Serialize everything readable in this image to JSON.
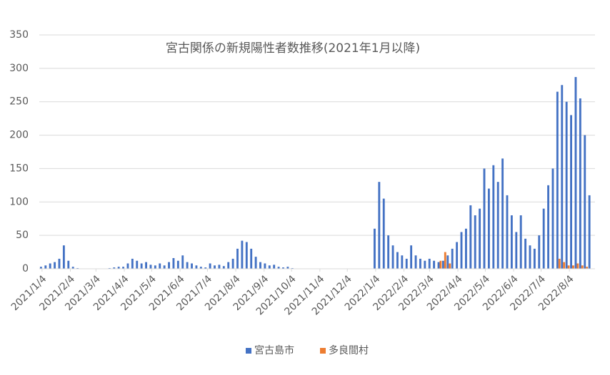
{
  "chart_data": {
    "type": "bar",
    "title": "宮古関係の新規陽性者数推移(2021年1月以降)",
    "x": [
      "2021/1/4",
      "2021/1/9",
      "2021/1/14",
      "2021/1/19",
      "2021/1/24",
      "2021/1/29",
      "2021/2/3",
      "2021/2/8",
      "2021/2/13",
      "2021/2/18",
      "2021/2/23",
      "2021/2/28",
      "2021/3/5",
      "2021/3/10",
      "2021/3/15",
      "2021/3/20",
      "2021/3/25",
      "2021/3/30",
      "2021/4/4",
      "2021/4/9",
      "2021/4/14",
      "2021/4/19",
      "2021/4/24",
      "2021/4/29",
      "2021/5/4",
      "2021/5/9",
      "2021/5/14",
      "2021/5/19",
      "2021/5/24",
      "2021/5/29",
      "2021/6/3",
      "2021/6/8",
      "2021/6/13",
      "2021/6/18",
      "2021/6/23",
      "2021/6/28",
      "2021/7/3",
      "2021/7/8",
      "2021/7/13",
      "2021/7/18",
      "2021/7/23",
      "2021/7/28",
      "2021/8/2",
      "2021/8/7",
      "2021/8/12",
      "2021/8/17",
      "2021/8/22",
      "2021/8/27",
      "2021/9/1",
      "2021/9/6",
      "2021/9/11",
      "2021/9/16",
      "2021/9/21",
      "2021/9/26",
      "2021/10/1",
      "2021/10/6",
      "2021/10/11",
      "2021/10/16",
      "2021/10/21",
      "2021/10/26",
      "2021/10/31",
      "2021/11/5",
      "2021/11/10",
      "2021/11/15",
      "2021/11/20",
      "2021/11/25",
      "2021/11/30",
      "2021/12/5",
      "2021/12/10",
      "2021/12/15",
      "2021/12/20",
      "2021/12/25",
      "2021/12/30",
      "2022/1/4",
      "2022/1/9",
      "2022/1/14",
      "2022/1/19",
      "2022/1/24",
      "2022/1/29",
      "2022/2/3",
      "2022/2/8",
      "2022/2/13",
      "2022/2/18",
      "2022/2/23",
      "2022/2/28",
      "2022/3/5",
      "2022/3/10",
      "2022/3/15",
      "2022/3/20",
      "2022/3/25",
      "2022/3/30",
      "2022/4/4",
      "2022/4/9",
      "2022/4/14",
      "2022/4/19",
      "2022/4/24",
      "2022/4/29",
      "2022/5/4",
      "2022/5/9",
      "2022/5/14",
      "2022/5/19",
      "2022/5/24",
      "2022/5/29",
      "2022/6/3",
      "2022/6/8",
      "2022/6/13",
      "2022/6/18",
      "2022/6/23",
      "2022/6/28",
      "2022/7/3",
      "2022/7/8",
      "2022/7/13",
      "2022/7/18",
      "2022/7/23",
      "2022/7/28",
      "2022/8/2",
      "2022/8/7",
      "2022/8/12",
      "2022/8/17",
      "2022/8/22",
      "2022/8/27"
    ],
    "series": [
      {
        "name": "宮古島市",
        "color": "#4472c4",
        "values": [
          3,
          5,
          8,
          10,
          15,
          35,
          12,
          3,
          1,
          0,
          0,
          0,
          0,
          0,
          0,
          1,
          2,
          3,
          3,
          8,
          15,
          12,
          8,
          10,
          6,
          5,
          8,
          5,
          10,
          16,
          12,
          20,
          10,
          8,
          5,
          3,
          2,
          8,
          5,
          6,
          4,
          10,
          15,
          30,
          42,
          40,
          30,
          18,
          10,
          8,
          5,
          6,
          3,
          2,
          3,
          1,
          0,
          0,
          0,
          0,
          0,
          0,
          0,
          0,
          0,
          0,
          0,
          0,
          0,
          0,
          0,
          0,
          0,
          60,
          130,
          105,
          50,
          35,
          25,
          20,
          15,
          35,
          20,
          15,
          12,
          15,
          12,
          10,
          12,
          20,
          30,
          40,
          55,
          60,
          95,
          80,
          90,
          150,
          120,
          155,
          130,
          165,
          110,
          80,
          55,
          80,
          45,
          35,
          30,
          50,
          90,
          125,
          150,
          265,
          275,
          250,
          230,
          287,
          255,
          200,
          110
        ]
      },
      {
        "name": "多良間村",
        "color": "#ed7d31",
        "values": [
          0,
          0,
          0,
          0,
          0,
          0,
          0,
          0,
          0,
          0,
          0,
          0,
          0,
          0,
          0,
          0,
          0,
          0,
          0,
          0,
          0,
          0,
          0,
          0,
          0,
          0,
          0,
          0,
          0,
          0,
          0,
          0,
          0,
          0,
          0,
          0,
          0,
          0,
          0,
          0,
          0,
          0,
          0,
          0,
          0,
          0,
          0,
          0,
          0,
          0,
          0,
          0,
          0,
          0,
          0,
          0,
          0,
          0,
          0,
          0,
          0,
          0,
          0,
          0,
          0,
          0,
          0,
          0,
          0,
          0,
          0,
          0,
          0,
          0,
          0,
          0,
          0,
          0,
          0,
          0,
          0,
          0,
          0,
          0,
          0,
          0,
          0,
          12,
          25,
          8,
          0,
          0,
          0,
          0,
          0,
          0,
          0,
          0,
          0,
          0,
          0,
          0,
          0,
          0,
          0,
          0,
          0,
          0,
          0,
          0,
          0,
          0,
          0,
          15,
          10,
          5,
          5,
          8,
          5,
          3,
          0
        ]
      }
    ],
    "xlim": [
      "2021/1/1",
      "2022/9/1"
    ],
    "xticks": [
      "2021/1/4",
      "2021/2/4",
      "2021/3/4",
      "2021/4/4",
      "2021/5/4",
      "2021/6/4",
      "2021/7/4",
      "2021/8/4",
      "2021/9/4",
      "2021/10/4",
      "2021/11/4",
      "2021/12/4",
      "2022/1/4",
      "2022/2/4",
      "2022/3/4",
      "2022/4/4",
      "2022/5/4",
      "2022/6/4",
      "2022/7/4",
      "2022/8/4"
    ],
    "ylim": [
      0,
      350
    ],
    "yticks": [
      0,
      50,
      100,
      150,
      200,
      250,
      300,
      350
    ],
    "grid": true,
    "legend": "bottom"
  }
}
